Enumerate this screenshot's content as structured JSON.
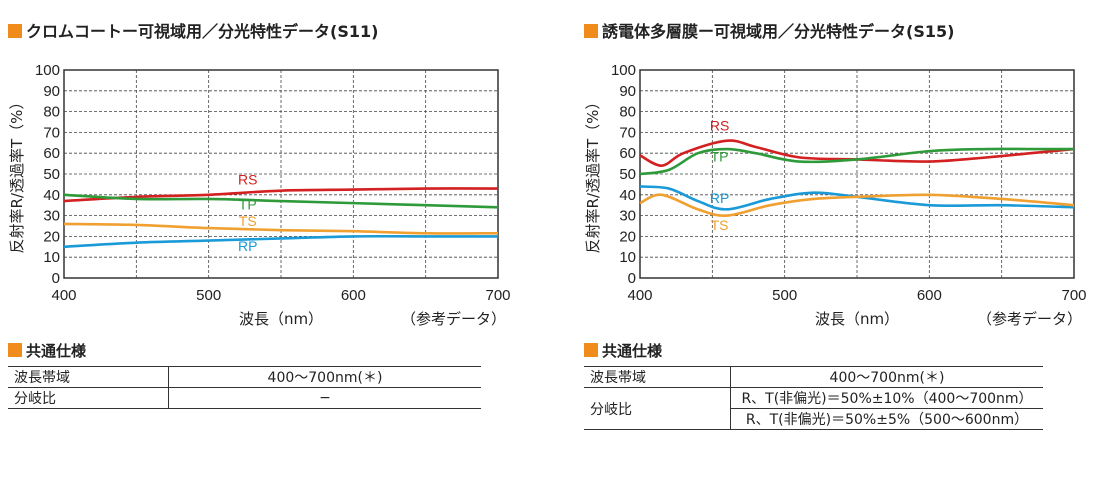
{
  "panels": [
    {
      "title": "クロムコートー可視域用／分光特性データ(S11)",
      "spec_heading": "共通仕様",
      "spec_rows": [
        {
          "label": "波長帯域",
          "values": [
            "400〜700nm(＊)"
          ]
        },
        {
          "label": "分岐比",
          "values": [
            "−"
          ]
        }
      ]
    },
    {
      "title": "誘電体多層膜ー可視域用／分光特性データ(S15)",
      "spec_heading": "共通仕様",
      "spec_rows": [
        {
          "label": "波長帯域",
          "values": [
            "400〜700nm(＊)"
          ]
        },
        {
          "label": "分岐比",
          "values": [
            "R、T(非偏光)＝50%±10%（400〜700nm）",
            "R、T(非偏光)＝50%±5%（500〜600nm）"
          ]
        }
      ]
    }
  ],
  "chart_data": [
    {
      "type": "line",
      "title": "クロムコートー可視域用／分光特性データ(S11)",
      "xlabel": "波長（nm）",
      "xlabel_note": "（参考データ）",
      "ylabel": "反射率R/透過率T（%）",
      "xlim": [
        400,
        700
      ],
      "ylim": [
        0,
        100
      ],
      "xticks": [
        400,
        500,
        600,
        700
      ],
      "yticks": [
        0,
        10,
        20,
        30,
        40,
        50,
        60,
        70,
        80,
        90,
        100
      ],
      "grid": true,
      "series": [
        {
          "name": "RS",
          "color": "#d32020",
          "x": [
            400,
            450,
            500,
            550,
            600,
            650,
            700
          ],
          "y": [
            37,
            39,
            40,
            42,
            42.5,
            43,
            43
          ],
          "label_at": [
            527,
            45
          ]
        },
        {
          "name": "TP",
          "color": "#2e9a3a",
          "x": [
            400,
            450,
            500,
            550,
            600,
            650,
            700
          ],
          "y": [
            40,
            38,
            38,
            37,
            36,
            35,
            34
          ],
          "label_at": [
            527,
            33
          ]
        },
        {
          "name": "TS",
          "color": "#f0a030",
          "x": [
            400,
            450,
            500,
            550,
            600,
            650,
            700
          ],
          "y": [
            26,
            25.5,
            24,
            23,
            22.5,
            21.5,
            21.5
          ],
          "label_at": [
            527,
            25
          ]
        },
        {
          "name": "RP",
          "color": "#1a9ad6",
          "x": [
            400,
            450,
            500,
            550,
            600,
            650,
            700
          ],
          "y": [
            15,
            17,
            18,
            19,
            20,
            20,
            20
          ],
          "label_at": [
            527,
            13
          ]
        }
      ]
    },
    {
      "type": "line",
      "title": "誘電体多層膜ー可視域用／分光特性データ(S15)",
      "xlabel": "波長（nm）",
      "xlabel_note": "（参考データ）",
      "ylabel": "反射率R/透過率T（%）",
      "xlim": [
        400,
        700
      ],
      "ylim": [
        0,
        100
      ],
      "xticks": [
        400,
        500,
        600,
        700
      ],
      "yticks": [
        0,
        10,
        20,
        30,
        40,
        50,
        60,
        70,
        80,
        90,
        100
      ],
      "grid": true,
      "series": [
        {
          "name": "RS",
          "color": "#d32020",
          "x": [
            400,
            415,
            430,
            460,
            480,
            510,
            550,
            600,
            640,
            670,
            700
          ],
          "y": [
            59,
            54,
            60,
            66,
            63,
            58,
            57,
            56,
            58,
            60,
            62
          ],
          "label_at": [
            455,
            71
          ]
        },
        {
          "name": "TP",
          "color": "#2e9a3a",
          "x": [
            400,
            420,
            440,
            460,
            480,
            510,
            550,
            600,
            640,
            670,
            700
          ],
          "y": [
            50,
            52,
            60,
            62,
            60,
            56,
            57,
            61,
            62,
            62,
            62
          ],
          "label_at": [
            455,
            56
          ]
        },
        {
          "name": "RP",
          "color": "#1a9ad6",
          "x": [
            400,
            420,
            440,
            460,
            490,
            520,
            550,
            600,
            650,
            700
          ],
          "y": [
            44,
            43,
            37,
            33,
            38,
            41,
            39,
            35,
            35,
            34
          ],
          "label_at": [
            455,
            36
          ]
        },
        {
          "name": "TS",
          "color": "#f0a030",
          "x": [
            400,
            415,
            440,
            460,
            490,
            520,
            550,
            600,
            650,
            700
          ],
          "y": [
            36,
            40,
            33,
            30,
            35,
            38,
            39,
            40,
            38,
            35
          ],
          "label_at": [
            455,
            23
          ]
        }
      ]
    }
  ]
}
